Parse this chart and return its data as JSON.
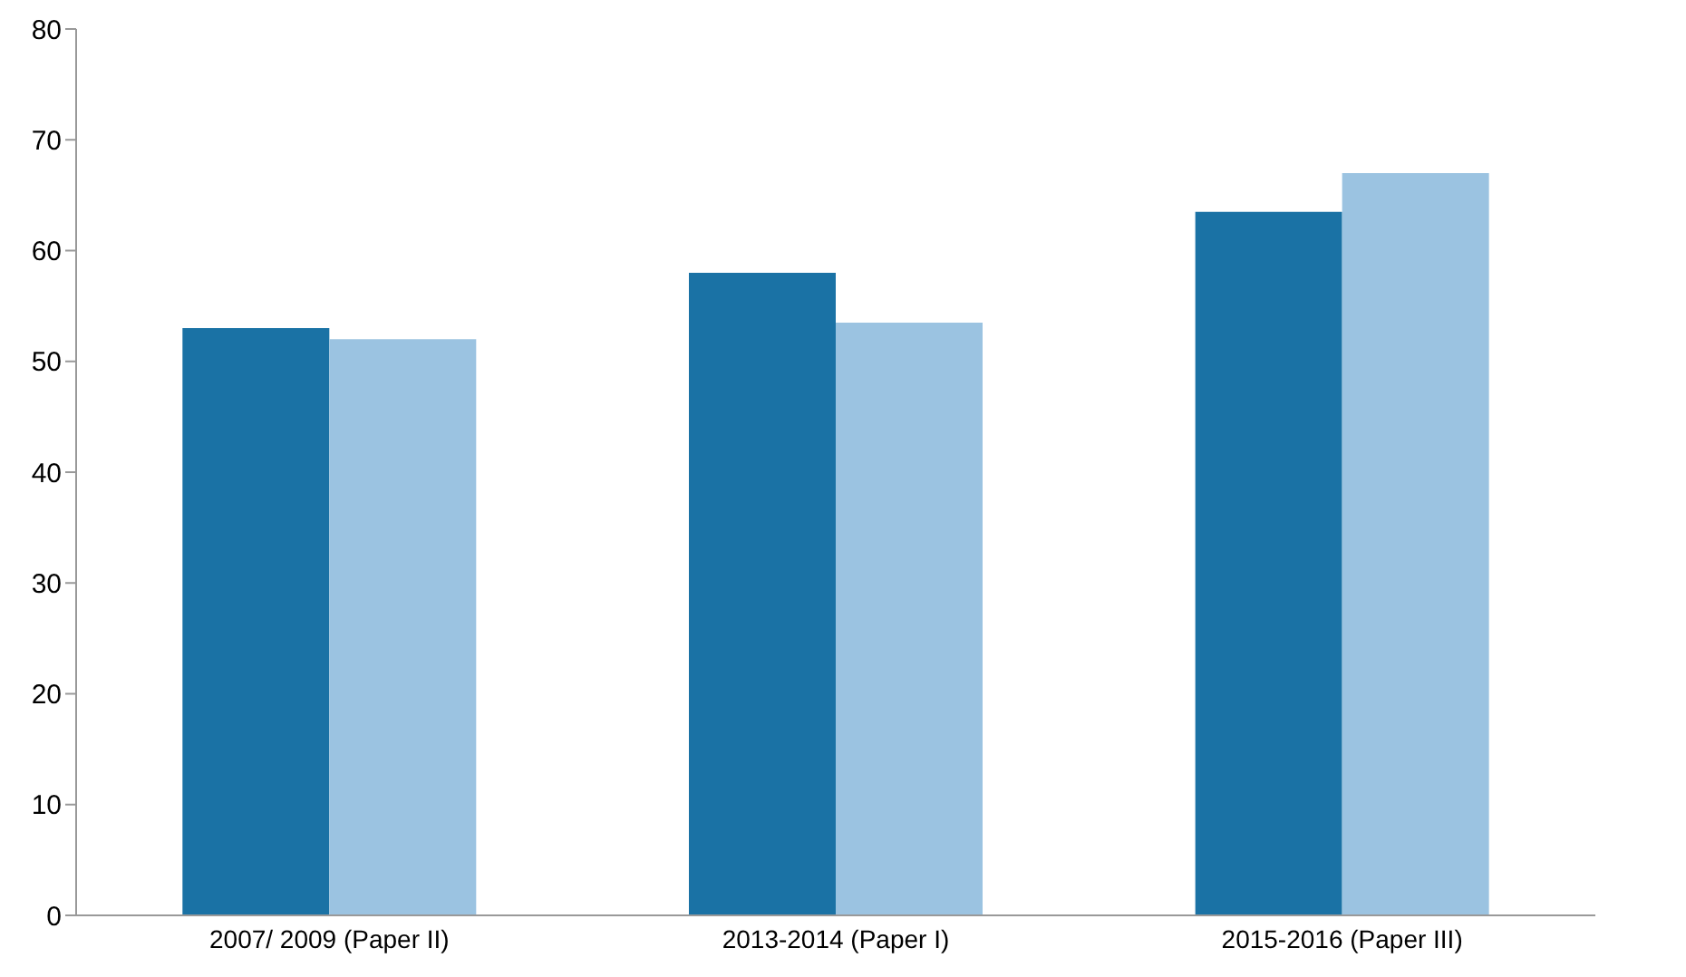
{
  "chart_data": {
    "type": "bar",
    "categories": [
      "2007/ 2009 (Paper II)",
      "2013-2014 (Paper I)",
      "2015-2016 (Paper III)"
    ],
    "series": [
      {
        "color": "#1a72a5",
        "values": [
          53,
          58,
          63.5
        ]
      },
      {
        "color": "#9bc3e1",
        "values": [
          52,
          53.5,
          67
        ]
      }
    ],
    "ylim": [
      0,
      80
    ],
    "yticks": [
      0,
      10,
      20,
      30,
      40,
      50,
      60,
      70,
      80
    ],
    "legend": false
  }
}
